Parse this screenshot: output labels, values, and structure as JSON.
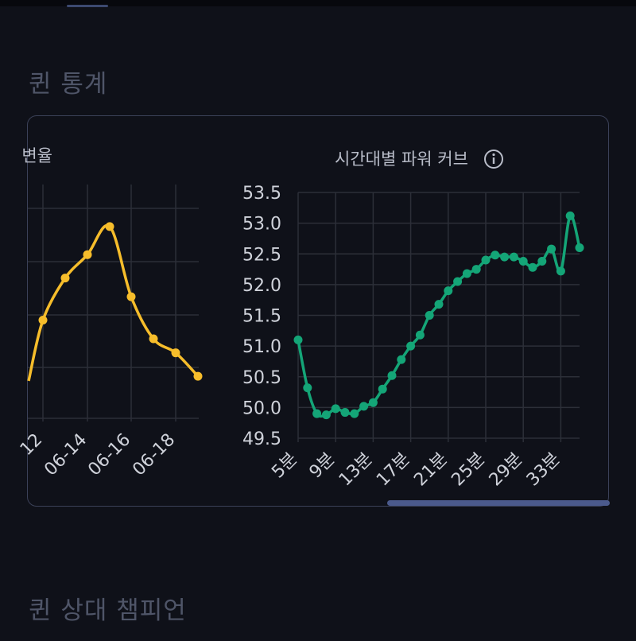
{
  "sections": {
    "queue_stats_title": "퀸 통계",
    "queue_vs_champion_title": "퀸 상대 챔피언"
  },
  "colors": {
    "background": "#0f1119",
    "card_border": "#3b4158",
    "grid": "#2c2f38",
    "yellow_series": "#f6bd2b",
    "green_series": "#14a577",
    "scrollbar": "#4b5a8c"
  },
  "chart_data": [
    {
      "type": "line",
      "title": "변율",
      "partially_visible": true,
      "x_tick_labels": [
        "12",
        "06-14",
        "06-16",
        "06-18"
      ],
      "series": [
        {
          "color": "#f6bd2b",
          "x": [
            "06-11",
            "06-12",
            "06-13",
            "06-14",
            "06-15",
            "06-16",
            "06-17",
            "06-18",
            "06-19"
          ],
          "values": [
            50.3,
            51.6,
            52.5,
            53.0,
            53.6,
            52.1,
            51.2,
            50.9,
            50.4
          ]
        }
      ],
      "ylim": [
        49.5,
        54.5
      ],
      "grid": true
    },
    {
      "type": "line",
      "title": "시간대별 파워 커브",
      "info_icon": "info-circle-icon",
      "y_tick_labels": [
        "53.5",
        "53.0",
        "52.5",
        "52.0",
        "51.5",
        "51.0",
        "50.5",
        "50.0",
        "49.5"
      ],
      "x_tick_labels": [
        "5분",
        "9분",
        "13분",
        "17분",
        "21분",
        "25분",
        "29분",
        "33분"
      ],
      "ylim": [
        49.5,
        53.5
      ],
      "grid": true,
      "series": [
        {
          "color": "#14a577",
          "x": [
            5,
            6,
            7,
            8,
            9,
            10,
            11,
            12,
            13,
            14,
            15,
            16,
            17,
            18,
            19,
            20,
            21,
            22,
            23,
            24,
            25,
            26,
            27,
            28,
            29,
            30,
            31,
            32,
            33,
            34,
            35
          ],
          "values": [
            51.1,
            50.32,
            49.9,
            49.88,
            49.98,
            49.92,
            49.9,
            50.02,
            50.08,
            50.3,
            50.52,
            50.78,
            51.0,
            51.18,
            51.5,
            51.68,
            51.9,
            52.05,
            52.18,
            52.25,
            52.4,
            52.48,
            52.45,
            52.45,
            52.38,
            52.28,
            52.38,
            52.58,
            52.22,
            53.12,
            52.6
          ]
        }
      ]
    }
  ]
}
